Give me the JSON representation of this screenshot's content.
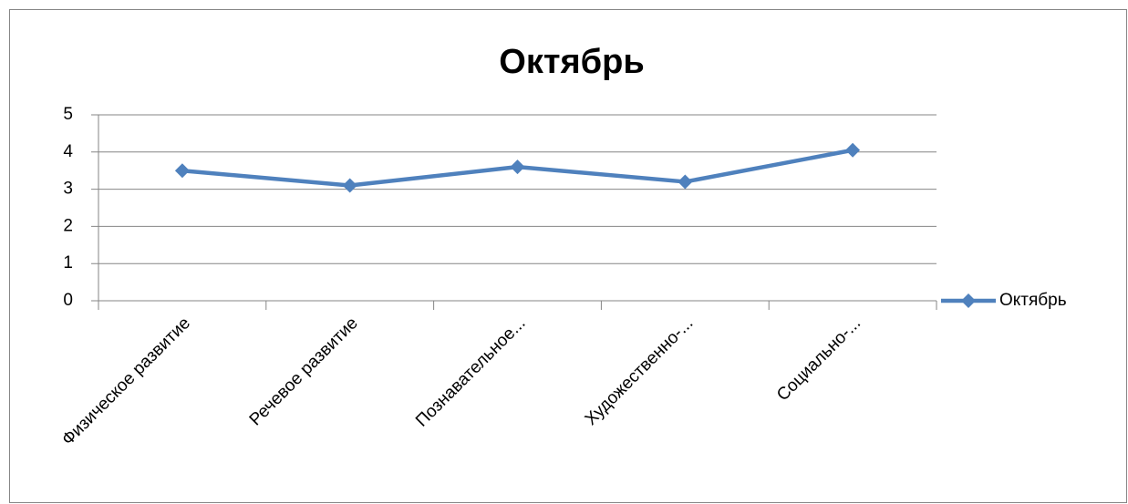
{
  "chart_data": {
    "type": "line",
    "title": "Октябрь",
    "categories": [
      "Физическое развитие",
      "Речевое развитие",
      "Познавательное...",
      "Художественно-...",
      "Социально-..."
    ],
    "series": [
      {
        "name": "Октябрь",
        "color": "#4f81bd",
        "values": [
          3.5,
          3.1,
          3.6,
          3.2,
          4.05
        ]
      }
    ],
    "ylim": [
      0,
      5
    ],
    "yticks": [
      0,
      1,
      2,
      3,
      4,
      5
    ],
    "grid": true,
    "legend": "right"
  }
}
